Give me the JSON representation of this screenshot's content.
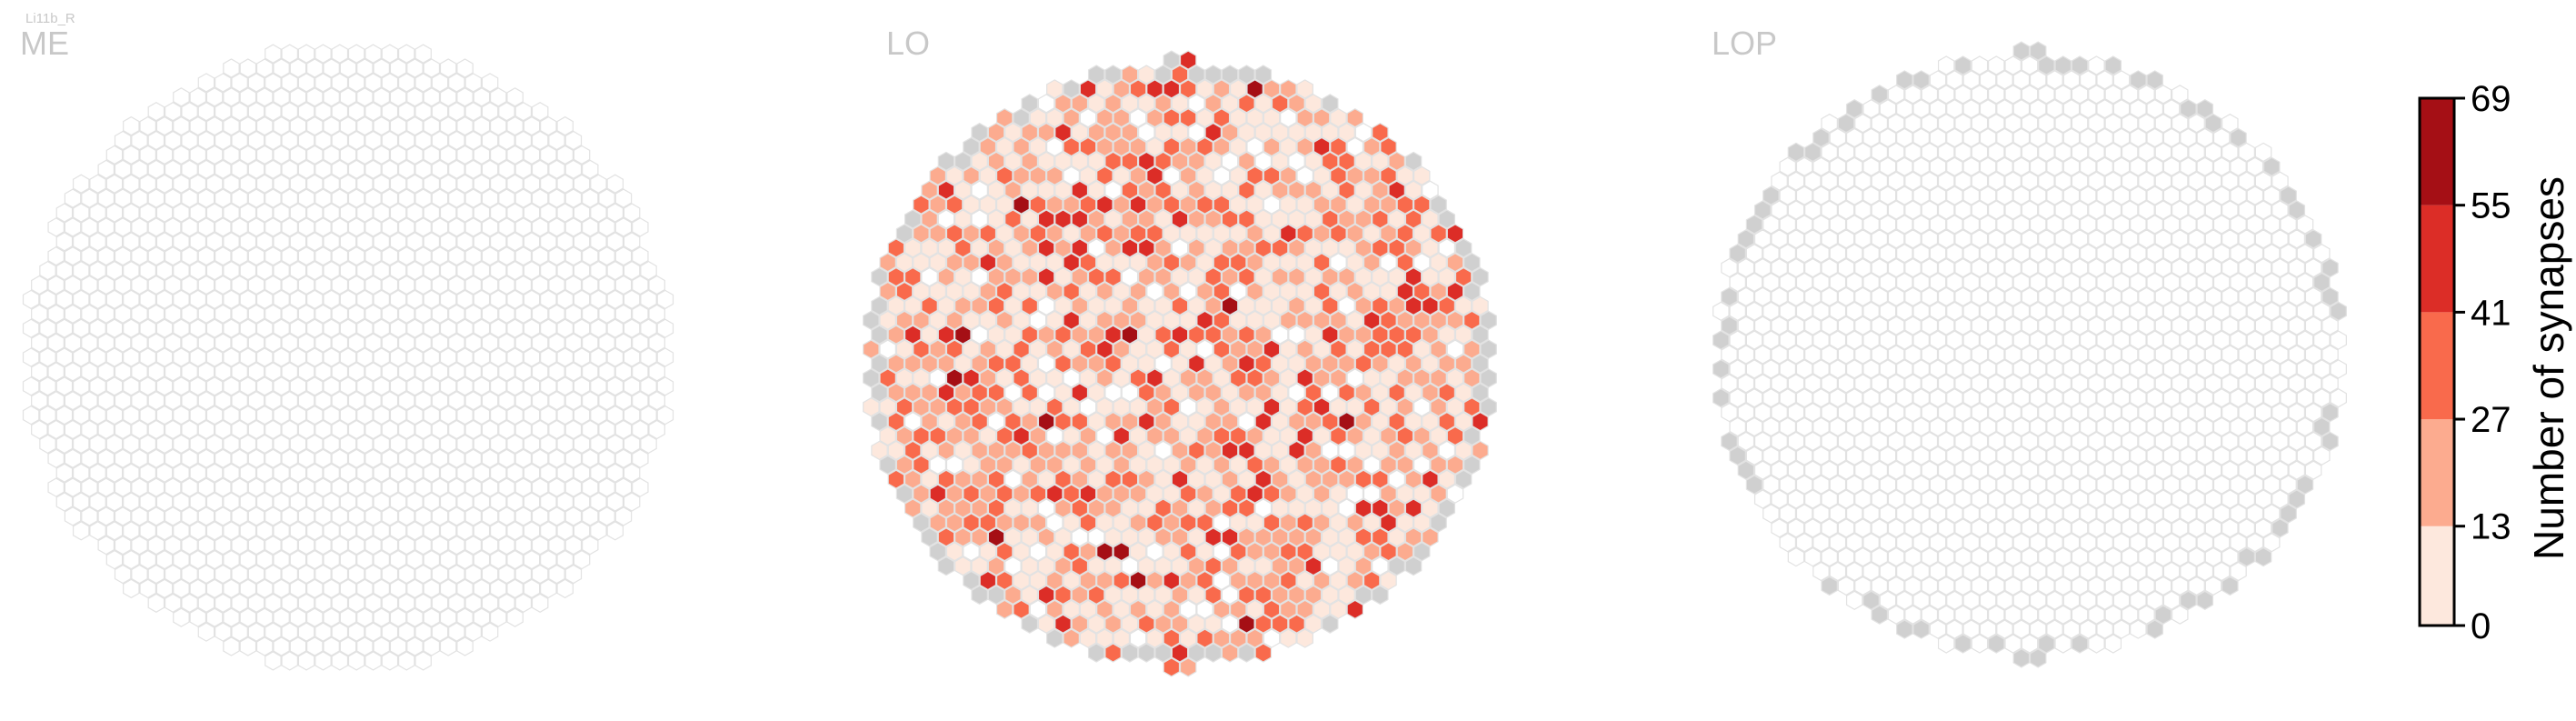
{
  "figure": {
    "cell_type": "Li11b_R"
  },
  "chart_data": {
    "type": "heatmap",
    "panels": [
      {
        "name": "ME",
        "columns_with_synapses": 0,
        "empty_columns_marked": false
      },
      {
        "name": "LO",
        "columns_with_synapses": "most",
        "empty_columns_marked": true
      },
      {
        "name": "LOP",
        "columns_with_synapses": 0,
        "empty_columns_marked": true
      }
    ],
    "colorbar": {
      "label": "Number of synapses",
      "ticks": [
        "0",
        "13",
        "27",
        "41",
        "55",
        "69"
      ],
      "range": [
        0,
        69
      ],
      "bins": [
        {
          "from": 0,
          "to": 13,
          "color": "#fde8dd"
        },
        {
          "from": 13,
          "to": 27,
          "color": "#fcab8f"
        },
        {
          "from": 27,
          "to": 41,
          "color": "#f96a4c"
        },
        {
          "from": 41,
          "to": 55,
          "color": "#dc2d27"
        },
        {
          "from": 55,
          "to": 69,
          "color": "#a50f15"
        }
      ]
    },
    "colors": {
      "no_column": "#ffffff",
      "empty_column_fill": "#d0d0d0",
      "cell_outline": "#e2e2e2",
      "title": "#c8c8c8"
    }
  }
}
